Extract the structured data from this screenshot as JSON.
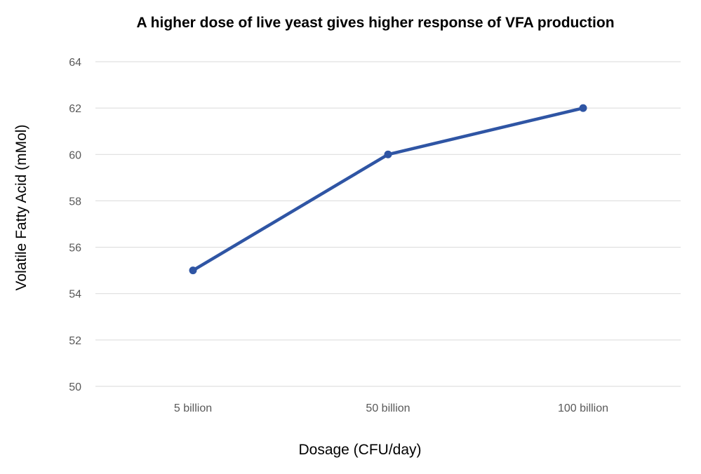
{
  "chart_data": {
    "type": "line",
    "title": "A higher dose of live yeast gives higher response of VFA production",
    "xlabel": "Dosage (CFU/day)",
    "ylabel": "Volatile Fatty Acid (mMol)",
    "categories": [
      "5 billion",
      "50 billion",
      "100 billion"
    ],
    "series": [
      {
        "name": "VFA",
        "values": [
          55,
          60,
          62
        ]
      }
    ],
    "ylim": [
      50,
      64
    ],
    "yticks": [
      "50",
      "52",
      "54",
      "56",
      "58",
      "60",
      "62",
      "64"
    ],
    "grid": true,
    "legend": "none",
    "colors": {
      "line": "#2f55a4",
      "grid": "#d9d9d9",
      "tick_text": "#595959"
    }
  }
}
